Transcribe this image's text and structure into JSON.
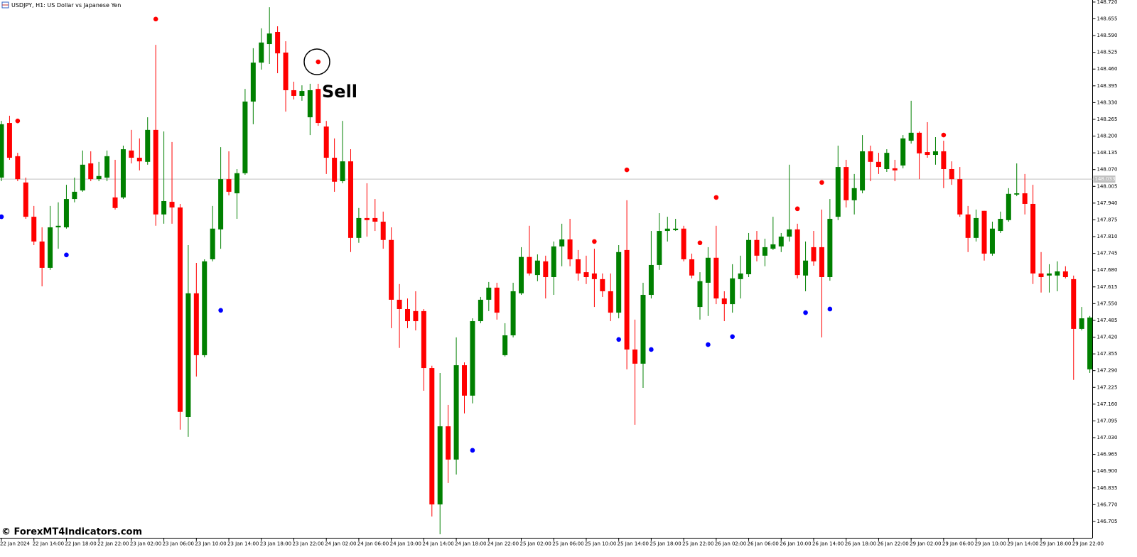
{
  "chart_data": {
    "type": "candlestick",
    "title": "USDJPY, H1: US Dollar vs Japanese Yen",
    "watermark": "© ForexMT4Indicators.com",
    "annotation": "Sell",
    "categories": [
      "22 Jan 2024",
      null,
      null,
      null,
      "22 Jan 14:00",
      null,
      null,
      null,
      "22 Jan 18:00",
      null,
      null,
      null,
      "22 Jan 22:00",
      null,
      null,
      null,
      "23 Jan 02:00",
      null,
      null,
      null,
      "23 Jan 06:00",
      null,
      null,
      null,
      "23 Jan 10:00",
      null,
      null,
      null,
      "23 Jan 14:00",
      null,
      null,
      null,
      "23 Jan 18:00",
      null,
      null,
      null,
      "23 Jan 22:00",
      null,
      null,
      null,
      "24 Jan 02:00",
      null,
      null,
      null,
      "24 Jan 06:00",
      null,
      null,
      null,
      "24 Jan 10:00",
      null,
      null,
      null,
      "24 Jan 14:00",
      null,
      null,
      null,
      "24 Jan 18:00",
      null,
      null,
      null,
      "24 Jan 22:00",
      null,
      null,
      null,
      "25 Jan 02:00",
      null,
      null,
      null,
      "25 Jan 06:00",
      null,
      null,
      null,
      "25 Jan 10:00",
      null,
      null,
      null,
      "25 Jan 14:00",
      null,
      null,
      null,
      "25 Jan 18:00",
      null,
      null,
      null,
      "25 Jan 22:00",
      null,
      null,
      null,
      "26 Jan 02:00",
      null,
      null,
      null,
      "26 Jan 06:00",
      null,
      null,
      null,
      "26 Jan 10:00",
      null,
      null,
      null,
      "26 Jan 14:00",
      null,
      null,
      null,
      "26 Jan 18:00",
      null,
      null,
      null,
      "26 Jan 22:00",
      null,
      null,
      null,
      "29 Jan 02:00",
      null,
      null,
      null,
      "29 Jan 06:00",
      null,
      null,
      null,
      "29 Jan 10:00",
      null,
      null,
      null,
      "29 Jan 14:00",
      null,
      null,
      null,
      "29 Jan 18:00",
      null,
      null,
      null,
      "29 Jan 22:00",
      null,
      null
    ],
    "open": [
      148.039,
      148.251,
      148.122,
      148.02,
      147.887,
      147.791,
      147.689,
      147.846,
      147.846,
      147.956,
      147.989,
      148.094,
      148.033,
      148.039,
      147.962,
      147.962,
      148.144,
      148.116,
      148.1,
      148.224,
      147.896,
      147.945,
      147.923,
      147.11,
      147.59,
      147.35,
      147.722,
      147.838,
      148.033,
      147.978,
      148.056,
      148.334,
      148.485,
      148.557,
      148.604,
      148.524,
      148.378,
      148.356,
      148.273,
      148.383,
      148.237,
      148.116,
      148.025,
      148.102,
      147.805,
      147.882,
      147.882,
      147.868,
      147.797,
      147.565,
      147.529,
      147.521,
      147.521,
      147.3,
      146.771,
      147.074,
      146.945,
      147.311,
      147.193,
      147.482,
      147.565,
      147.612,
      147.35,
      147.427,
      147.59,
      147.731,
      147.661,
      147.714,
      147.653,
      147.772,
      147.799,
      147.722,
      147.672,
      147.667,
      147.645,
      147.598,
      147.515,
      147.758,
      147.372,
      147.317,
      147.584,
      147.7,
      147.832,
      147.835,
      147.841,
      147.722,
      147.537,
      147.631,
      147.728,
      147.57,
      147.548,
      147.645,
      147.664,
      147.797,
      147.736,
      147.763,
      147.772,
      147.81,
      147.838,
      147.659,
      147.769,
      147.769,
      147.653,
      147.887,
      148.08,
      147.951,
      147.989,
      148.141,
      148.1,
      148.072,
      148.075,
      148.086,
      148.182,
      148.213,
      148.138,
      148.127,
      148.141,
      148.072,
      148.033,
      147.896,
      147.805,
      147.91,
      147.744,
      147.832,
      147.874,
      147.973,
      147.978,
      147.937,
      147.667,
      147.659,
      147.659,
      147.675,
      147.645,
      147.452,
      147.295
    ],
    "high": [
      148.259,
      148.279,
      148.135,
      148.039,
      147.929,
      147.846,
      147.929,
      147.943,
      148.011,
      148.039,
      148.144,
      148.141,
      148.1,
      148.144,
      148.108,
      148.163,
      148.224,
      148.191,
      148.273,
      148.554,
      148.218,
      148.177,
      147.937,
      147.777,
      147.708,
      147.722,
      147.929,
      148.157,
      148.141,
      148.072,
      148.383,
      148.541,
      148.618,
      148.7,
      148.626,
      148.568,
      148.411,
      148.397,
      148.403,
      148.403,
      148.259,
      148.191,
      148.259,
      148.149,
      147.921,
      148.017,
      147.956,
      147.907,
      147.846,
      147.626,
      147.57,
      147.598,
      147.529,
      147.309,
      147.281,
      147.157,
      147.419,
      147.322,
      147.493,
      147.576,
      147.634,
      147.631,
      147.474,
      147.631,
      147.769,
      147.852,
      147.741,
      147.736,
      147.791,
      147.86,
      147.879,
      147.758,
      147.736,
      147.763,
      147.667,
      147.667,
      147.777,
      147.951,
      147.488,
      147.631,
      147.832,
      147.901,
      147.887,
      147.879,
      147.852,
      147.744,
      147.672,
      147.769,
      147.852,
      147.598,
      147.703,
      147.736,
      147.824,
      147.832,
      147.802,
      147.887,
      147.824,
      148.089,
      147.86,
      147.791,
      147.832,
      147.915,
      147.956,
      148.163,
      148.108,
      148.053,
      148.204,
      148.163,
      148.135,
      148.149,
      148.108,
      148.204,
      148.337,
      148.218,
      148.254,
      148.196,
      148.182,
      148.102,
      148.08,
      147.929,
      147.915,
      147.91,
      147.868,
      147.907,
      147.998,
      148.094,
      148.053,
      148.011,
      147.75,
      147.703,
      147.714,
      147.695,
      147.659,
      147.537,
      147.502
    ],
    "low": [
      148.025,
      148.108,
      148.025,
      147.879,
      147.777,
      147.617,
      147.681,
      147.763,
      147.841,
      147.943,
      147.984,
      148.025,
      148.025,
      148.025,
      147.915,
      147.956,
      148.094,
      148.067,
      148.089,
      147.852,
      147.86,
      147.86,
      147.061,
      147.033,
      147.267,
      147.342,
      147.714,
      147.763,
      147.97,
      147.879,
      148.05,
      148.246,
      148.458,
      148.48,
      148.444,
      148.295,
      148.342,
      148.337,
      148.204,
      148.24,
      148.053,
      147.984,
      148.017,
      147.75,
      147.786,
      147.81,
      147.832,
      147.763,
      147.455,
      147.378,
      147.455,
      147.446,
      147.212,
      146.724,
      146.655,
      146.854,
      146.887,
      147.124,
      147.163,
      147.474,
      147.521,
      147.488,
      147.345,
      147.419,
      147.584,
      147.659,
      147.637,
      147.57,
      147.584,
      147.695,
      147.695,
      147.639,
      147.626,
      147.537,
      147.576,
      147.482,
      147.493,
      147.295,
      147.08,
      147.223,
      147.57,
      147.681,
      147.791,
      147.832,
      147.714,
      147.648,
      147.488,
      147.502,
      147.548,
      147.482,
      147.515,
      147.57,
      147.653,
      147.714,
      147.695,
      147.758,
      147.75,
      147.791,
      147.648,
      147.598,
      147.697,
      147.419,
      147.639,
      147.874,
      147.923,
      147.896,
      147.978,
      148.025,
      148.053,
      148.061,
      148.025,
      148.075,
      148.171,
      148.033,
      148.116,
      148.089,
      147.998,
      148.011,
      147.887,
      147.75,
      147.791,
      147.717,
      147.736,
      147.824,
      147.868,
      147.967,
      147.896,
      147.626,
      147.593,
      147.593,
      147.598,
      147.648,
      147.254,
      147.446,
      147.281
    ],
    "close": [
      148.246,
      148.116,
      148.033,
      147.887,
      147.791,
      147.689,
      147.846,
      147.852,
      147.956,
      147.984,
      148.089,
      148.033,
      148.045,
      148.122,
      147.921,
      148.149,
      148.116,
      148.102,
      148.224,
      147.896,
      147.948,
      147.923,
      147.13,
      147.59,
      147.35,
      147.714,
      147.841,
      148.033,
      147.984,
      148.056,
      148.334,
      148.485,
      148.563,
      148.598,
      148.521,
      148.378,
      148.356,
      148.375,
      148.378,
      148.251,
      148.116,
      148.023,
      148.102,
      147.805,
      147.882,
      147.874,
      147.868,
      147.797,
      147.565,
      147.529,
      147.482,
      147.482,
      147.3,
      146.771,
      147.074,
      146.945,
      147.311,
      147.193,
      147.482,
      147.565,
      147.612,
      147.515,
      147.427,
      147.598,
      147.731,
      147.667,
      147.717,
      147.653,
      147.772,
      147.799,
      147.722,
      147.667,
      147.653,
      147.645,
      147.598,
      147.515,
      147.75,
      147.372,
      147.317,
      147.584,
      147.7,
      147.832,
      147.841,
      147.841,
      147.722,
      147.659,
      147.637,
      147.728,
      147.57,
      147.548,
      147.648,
      147.667,
      147.797,
      147.736,
      147.769,
      147.78,
      147.81,
      147.838,
      147.661,
      147.717,
      147.714,
      147.653,
      147.879,
      148.08,
      147.951,
      147.998,
      148.141,
      148.1,
      148.08,
      148.135,
      148.067,
      148.191,
      148.213,
      148.133,
      148.127,
      148.141,
      148.072,
      148.033,
      147.896,
      147.805,
      147.882,
      147.744,
      147.841,
      147.879,
      147.976,
      147.978,
      147.937,
      147.667,
      147.653,
      147.667,
      147.675,
      147.653,
      147.452,
      147.493,
      147.496
    ],
    "up_color": "#008000",
    "down_color": "#ff0000",
    "sell_signals": {
      "color": "#ff0000",
      "values": [
        null,
        null,
        148.259,
        null,
        null,
        null,
        null,
        null,
        null,
        null,
        null,
        null,
        null,
        null,
        null,
        null,
        null,
        null,
        null,
        148.654,
        null,
        null,
        null,
        null,
        null,
        null,
        null,
        null,
        null,
        null,
        null,
        null,
        null,
        null,
        null,
        null,
        null,
        null,
        null,
        148.488,
        null,
        null,
        null,
        null,
        null,
        null,
        null,
        null,
        null,
        null,
        null,
        null,
        null,
        null,
        null,
        null,
        null,
        null,
        null,
        null,
        null,
        null,
        null,
        null,
        null,
        null,
        null,
        null,
        null,
        null,
        null,
        null,
        null,
        147.791,
        null,
        null,
        null,
        148.069,
        null,
        null,
        null,
        null,
        null,
        null,
        null,
        null,
        147.786,
        null,
        147.962,
        null,
        null,
        null,
        null,
        null,
        null,
        null,
        null,
        null,
        147.918,
        null,
        null,
        148.02,
        null,
        null,
        null,
        null,
        null,
        null,
        null,
        null,
        null,
        null,
        null,
        null,
        null,
        null,
        148.204,
        null,
        null,
        null,
        null,
        null,
        null,
        null,
        null,
        null,
        null,
        null,
        null,
        null,
        null,
        null,
        null,
        null,
        null
      ]
    },
    "buy_signals": {
      "color": "#0000ff",
      "values": [
        147.887,
        null,
        null,
        null,
        null,
        null,
        null,
        null,
        147.739,
        null,
        null,
        null,
        null,
        null,
        null,
        null,
        null,
        null,
        null,
        null,
        null,
        null,
        null,
        null,
        null,
        null,
        null,
        147.524,
        null,
        null,
        null,
        null,
        null,
        null,
        null,
        null,
        null,
        null,
        null,
        null,
        null,
        null,
        null,
        null,
        null,
        null,
        null,
        null,
        null,
        null,
        null,
        null,
        null,
        null,
        null,
        null,
        null,
        null,
        146.981,
        null,
        null,
        null,
        null,
        null,
        null,
        null,
        null,
        null,
        null,
        null,
        null,
        null,
        null,
        null,
        null,
        null,
        147.411,
        null,
        null,
        null,
        147.372,
        null,
        null,
        null,
        null,
        null,
        null,
        147.391,
        null,
        null,
        147.422,
        null,
        null,
        null,
        null,
        null,
        null,
        null,
        null,
        147.515,
        null,
        null,
        147.529,
        null,
        null,
        null,
        null,
        null,
        null,
        null,
        null,
        null,
        null,
        null,
        null,
        null,
        null,
        null,
        null,
        null,
        null,
        null,
        null,
        null,
        null,
        null,
        null,
        null,
        null,
        null,
        null,
        null,
        null,
        null,
        null
      ]
    },
    "current_price": 148.033,
    "ylim": [
      146.64,
      148.728
    ],
    "yticks": [
      {
        "value": 148.72,
        "label": "148.720"
      },
      148.655,
      {
        "value": 148.59,
        "label": "148.590"
      },
      148.525,
      {
        "value": 148.46,
        "label": "148.460"
      },
      148.395,
      {
        "value": 148.33,
        "label": "148.330"
      },
      148.265,
      {
        "value": 148.2,
        "label": "148.200"
      },
      148.135,
      {
        "value": 148.07,
        "label": "148.070"
      },
      148.005,
      {
        "value": 147.94,
        "label": "147.940"
      },
      147.875,
      {
        "value": 147.81,
        "label": "147.810"
      },
      147.745,
      {
        "value": 147.68,
        "label": "147.680"
      },
      147.615,
      {
        "value": 147.55,
        "label": "147.550"
      },
      147.485,
      {
        "value": 147.42,
        "label": "147.420"
      },
      147.355,
      {
        "value": 147.29,
        "label": "147.290"
      },
      147.225,
      {
        "value": 147.16,
        "label": "147.160"
      },
      147.095,
      {
        "value": 147.03,
        "label": "147.030"
      },
      146.965,
      {
        "value": 146.9,
        "label": "146.900"
      },
      146.835,
      {
        "value": 146.77,
        "label": "146.770"
      },
      146.705
    ],
    "grid": false
  }
}
